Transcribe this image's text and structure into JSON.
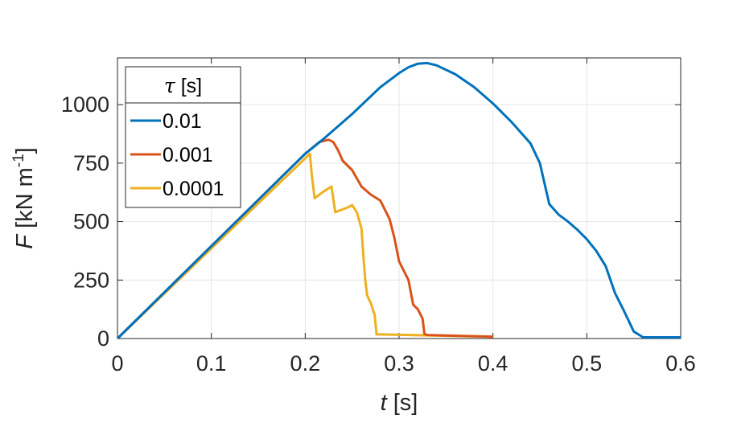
{
  "chart_data": {
    "type": "line",
    "xlabel": {
      "var": "t",
      "unit": " [s]"
    },
    "ylabel": {
      "var": "F",
      "unit_pre": " [kN m",
      "unit_sup": "-1",
      "unit_post": "]"
    },
    "xlim": [
      0,
      0.6
    ],
    "ylim": [
      0,
      1200
    ],
    "xticks": [
      0,
      0.1,
      0.2,
      0.3,
      0.4,
      0.5,
      0.6
    ],
    "xtick_labels": [
      "0",
      "0.1",
      "0.2",
      "0.3",
      "0.4",
      "0.5",
      "0.6"
    ],
    "yticks": [
      0,
      250,
      500,
      750,
      1000
    ],
    "ytick_labels": [
      "0",
      "250",
      "500",
      "750",
      "1000"
    ],
    "grid": true,
    "legend": {
      "title_symbol": "τ",
      "title_unit": " [s]",
      "placement": "top-left"
    },
    "series": [
      {
        "name": "0.01",
        "color": "#0072BD",
        "x": [
          0,
          0.2,
          0.22,
          0.25,
          0.28,
          0.3,
          0.31,
          0.32,
          0.33,
          0.34,
          0.36,
          0.38,
          0.4,
          0.42,
          0.44,
          0.45,
          0.46,
          0.47,
          0.48,
          0.49,
          0.5,
          0.51,
          0.52,
          0.53,
          0.54,
          0.55,
          0.56,
          0.6
        ],
        "y": [
          0,
          790,
          855,
          960,
          1075,
          1135,
          1160,
          1175,
          1178,
          1168,
          1130,
          1075,
          1005,
          925,
          835,
          750,
          575,
          530,
          500,
          465,
          425,
          375,
          310,
          195,
          115,
          30,
          5,
          5
        ]
      },
      {
        "name": "0.001",
        "color": "#D95319",
        "x": [
          0,
          0.2,
          0.215,
          0.225,
          0.23,
          0.235,
          0.24,
          0.25,
          0.26,
          0.27,
          0.28,
          0.29,
          0.295,
          0.3,
          0.31,
          0.315,
          0.32,
          0.325,
          0.327,
          0.33,
          0.4
        ],
        "y": [
          0,
          790,
          840,
          850,
          840,
          805,
          760,
          720,
          650,
          615,
          590,
          510,
          430,
          330,
          250,
          145,
          125,
          85,
          20,
          15,
          8
        ]
      },
      {
        "name": "0.0001",
        "color": "#EDB120",
        "x": [
          0,
          0.205,
          0.207,
          0.21,
          0.22,
          0.228,
          0.232,
          0.235,
          0.245,
          0.25,
          0.255,
          0.26,
          0.262,
          0.264,
          0.266,
          0.27,
          0.274,
          0.276,
          0.4
        ],
        "y": [
          0,
          790,
          700,
          600,
          630,
          650,
          540,
          545,
          560,
          570,
          540,
          470,
          350,
          250,
          185,
          150,
          100,
          18,
          8
        ]
      }
    ]
  }
}
